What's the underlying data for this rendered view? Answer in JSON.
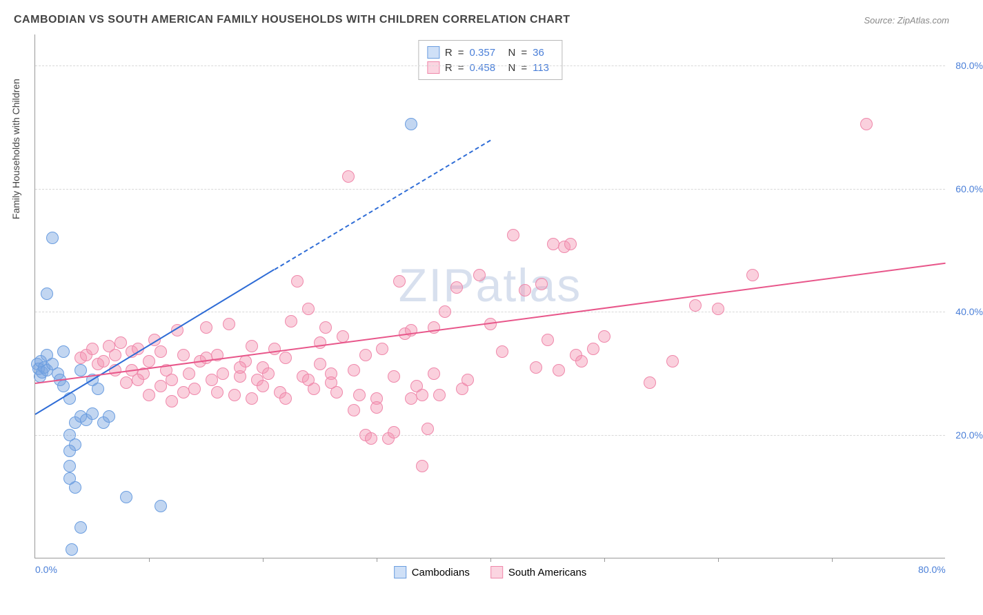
{
  "chart": {
    "title": "CAMBODIAN VS SOUTH AMERICAN FAMILY HOUSEHOLDS WITH CHILDREN CORRELATION CHART",
    "source": "Source: ZipAtlas.com",
    "watermark": "ZIPatlas",
    "y_axis_label": "Family Households with Children",
    "type": "scatter",
    "xlim": [
      0,
      80
    ],
    "ylim": [
      0,
      85
    ],
    "x_ticks": [
      0,
      80
    ],
    "x_tick_labels": [
      "0.0%",
      "80.0%"
    ],
    "x_minor_ticks": [
      10,
      20,
      30,
      40,
      50,
      60,
      70
    ],
    "y_ticks": [
      20,
      40,
      60,
      80
    ],
    "y_tick_labels": [
      "20.0%",
      "40.0%",
      "60.0%",
      "80.0%"
    ],
    "background_color": "#ffffff",
    "grid_color": "#d8d8d8",
    "axis_color": "#999999",
    "tick_label_color": "#4a7fd8",
    "title_color": "#444444",
    "title_fontsize": 16,
    "label_fontsize": 14,
    "marker_radius": 9,
    "marker_opacity": 0.55,
    "series": [
      {
        "name": "Cambodians",
        "legend_label": "Cambodians",
        "color_fill": "rgba(120,165,225,0.45)",
        "color_stroke": "#6a9de0",
        "swatch_fill": "#cfe0f7",
        "swatch_border": "#6a9de0",
        "stats": {
          "R": "0.357",
          "N": "36"
        },
        "regression": {
          "x1": 0,
          "y1": 23.5,
          "x2": 21,
          "y2": 47,
          "solid_until_x": 21,
          "dash_to_x": 40,
          "dash_to_y": 68,
          "color": "#2e6cd6"
        },
        "points": [
          [
            0.2,
            31.5
          ],
          [
            0.3,
            30.8
          ],
          [
            0.5,
            32.0
          ],
          [
            0.4,
            29.5
          ],
          [
            0.6,
            30.2
          ],
          [
            0.8,
            31.0
          ],
          [
            1.0,
            33.0
          ],
          [
            1.0,
            30.5
          ],
          [
            1.5,
            31.5
          ],
          [
            2.0,
            30.0
          ],
          [
            2.2,
            29.0
          ],
          [
            2.5,
            33.5
          ],
          [
            1.0,
            43.0
          ],
          [
            1.5,
            52.0
          ],
          [
            3.5,
            22.0
          ],
          [
            4.0,
            23.0
          ],
          [
            3.0,
            20.0
          ],
          [
            3.5,
            18.5
          ],
          [
            4.5,
            22.5
          ],
          [
            5.0,
            23.5
          ],
          [
            3.0,
            15.0
          ],
          [
            3.5,
            11.5
          ],
          [
            3.0,
            13.0
          ],
          [
            4.0,
            5.0
          ],
          [
            8.0,
            10.0
          ],
          [
            11.0,
            8.5
          ],
          [
            3.2,
            1.5
          ],
          [
            3.0,
            26.0
          ],
          [
            2.5,
            28.0
          ],
          [
            4.0,
            30.5
          ],
          [
            5.0,
            29.0
          ],
          [
            5.5,
            27.5
          ],
          [
            6.0,
            22.0
          ],
          [
            6.5,
            23.0
          ],
          [
            3.0,
            17.5
          ],
          [
            33.0,
            70.5
          ]
        ]
      },
      {
        "name": "South Americans",
        "legend_label": "South Americans",
        "color_fill": "rgba(245,150,180,0.45)",
        "color_stroke": "#ef87aa",
        "swatch_fill": "#fbd5e1",
        "swatch_border": "#ef87aa",
        "stats": {
          "R": "0.458",
          "N": "113"
        },
        "regression": {
          "x1": 0,
          "y1": 28.5,
          "x2": 80,
          "y2": 48.0,
          "color": "#e8568a"
        },
        "points": [
          [
            4.0,
            32.5
          ],
          [
            4.5,
            33.0
          ],
          [
            5.0,
            34.0
          ],
          [
            5.5,
            31.5
          ],
          [
            6.0,
            32.0
          ],
          [
            6.5,
            34.5
          ],
          [
            7.0,
            30.5
          ],
          [
            7.5,
            35.0
          ],
          [
            8.0,
            28.5
          ],
          [
            8.5,
            33.5
          ],
          [
            9.0,
            34.0
          ],
          [
            9.5,
            30.0
          ],
          [
            10.0,
            32.0
          ],
          [
            10.5,
            35.5
          ],
          [
            11.0,
            28.0
          ],
          [
            11.5,
            30.5
          ],
          [
            12.0,
            29.0
          ],
          [
            12.5,
            37.0
          ],
          [
            13.0,
            33.0
          ],
          [
            13.5,
            30.0
          ],
          [
            14.0,
            27.5
          ],
          [
            14.5,
            32.0
          ],
          [
            15.0,
            37.5
          ],
          [
            15.5,
            29.0
          ],
          [
            16.0,
            27.0
          ],
          [
            16.5,
            30.0
          ],
          [
            17.0,
            38.0
          ],
          [
            17.5,
            26.5
          ],
          [
            18.0,
            29.5
          ],
          [
            18.5,
            32.0
          ],
          [
            19.0,
            26.0
          ],
          [
            19.5,
            29.0
          ],
          [
            20.0,
            31.0
          ],
          [
            20.5,
            30.0
          ],
          [
            21.0,
            34.0
          ],
          [
            21.5,
            27.0
          ],
          [
            22.0,
            26.0
          ],
          [
            22.5,
            38.5
          ],
          [
            23.0,
            45.0
          ],
          [
            23.5,
            29.5
          ],
          [
            24.0,
            40.5
          ],
          [
            24.5,
            27.5
          ],
          [
            25.0,
            35.0
          ],
          [
            25.5,
            37.5
          ],
          [
            26.0,
            30.0
          ],
          [
            26.5,
            27.0
          ],
          [
            27.0,
            36.0
          ],
          [
            27.5,
            62.0
          ],
          [
            28.0,
            30.5
          ],
          [
            28.5,
            26.5
          ],
          [
            29.0,
            20.0
          ],
          [
            29.5,
            19.5
          ],
          [
            30.0,
            26.0
          ],
          [
            30.5,
            34.0
          ],
          [
            31.0,
            19.5
          ],
          [
            31.5,
            29.5
          ],
          [
            32.0,
            45.0
          ],
          [
            32.5,
            36.5
          ],
          [
            33.0,
            37.0
          ],
          [
            33.5,
            28.0
          ],
          [
            34.0,
            15.0
          ],
          [
            34.5,
            21.0
          ],
          [
            35.0,
            37.5
          ],
          [
            35.5,
            26.5
          ],
          [
            33.0,
            26.0
          ],
          [
            34.0,
            26.5
          ],
          [
            35.0,
            30.0
          ],
          [
            36.0,
            40.0
          ],
          [
            37.0,
            44.0
          ],
          [
            37.5,
            27.5
          ],
          [
            38.0,
            29.0
          ],
          [
            39.0,
            46.0
          ],
          [
            40.0,
            38.0
          ],
          [
            41.0,
            33.5
          ],
          [
            42.0,
            52.5
          ],
          [
            43.0,
            43.5
          ],
          [
            44.0,
            31.0
          ],
          [
            44.5,
            44.5
          ],
          [
            45.0,
            35.5
          ],
          [
            45.5,
            51.0
          ],
          [
            46.0,
            30.5
          ],
          [
            46.5,
            50.5
          ],
          [
            47.0,
            51.0
          ],
          [
            47.5,
            33.0
          ],
          [
            48.0,
            32.0
          ],
          [
            49.0,
            34.0
          ],
          [
            50.0,
            36.0
          ],
          [
            54.0,
            28.5
          ],
          [
            56.0,
            32.0
          ],
          [
            58.0,
            41.0
          ],
          [
            60.0,
            40.5
          ],
          [
            63.0,
            46.0
          ],
          [
            73.0,
            70.5
          ],
          [
            7.0,
            33.0
          ],
          [
            8.5,
            30.5
          ],
          [
            9.0,
            29.0
          ],
          [
            11.0,
            33.5
          ],
          [
            13.0,
            27.0
          ],
          [
            16.0,
            33.0
          ],
          [
            18.0,
            31.0
          ],
          [
            20.0,
            28.0
          ],
          [
            22.0,
            32.5
          ],
          [
            24.0,
            29.0
          ],
          [
            26.0,
            28.5
          ],
          [
            28.0,
            24.0
          ],
          [
            30.0,
            24.5
          ],
          [
            31.5,
            20.5
          ],
          [
            10.0,
            26.5
          ],
          [
            12.0,
            25.5
          ],
          [
            15.0,
            32.5
          ],
          [
            19.0,
            34.5
          ],
          [
            25.0,
            31.5
          ],
          [
            29.0,
            33.0
          ]
        ]
      }
    ]
  }
}
